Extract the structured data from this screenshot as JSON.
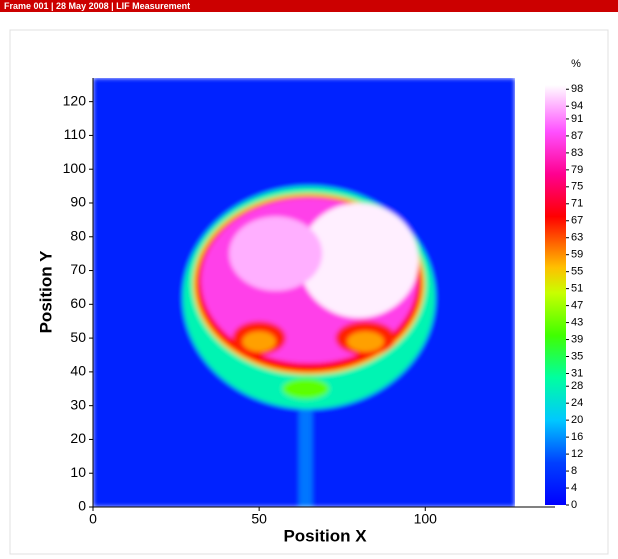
{
  "chart_data": {
    "type": "heatmap",
    "title": "Frame 001 | 28 May 2008 | LIF Measurement",
    "xlabel": "Position X",
    "ylabel": "Position Y",
    "xlim": [
      0,
      127
    ],
    "ylim": [
      0,
      127
    ],
    "xticks": [
      0,
      50,
      100
    ],
    "yticks": [
      0,
      10,
      20,
      30,
      40,
      50,
      60,
      70,
      80,
      90,
      100,
      110,
      120
    ],
    "colorbar_label": "%",
    "colorbar_lim": [
      0,
      99
    ],
    "colorbar_ticks": [
      98,
      94,
      91,
      87,
      83,
      79,
      75,
      71,
      67,
      63,
      59,
      55,
      51,
      47,
      43,
      39,
      35,
      31,
      28,
      24,
      20,
      16,
      12,
      8,
      4,
      0
    ],
    "colormap": [
      {
        "value": 0,
        "color": "#0000ff"
      },
      {
        "value": 10,
        "color": "#0040ff"
      },
      {
        "value": 20,
        "color": "#00c8ff"
      },
      {
        "value": 30,
        "color": "#00ffa0"
      },
      {
        "value": 40,
        "color": "#40ff00"
      },
      {
        "value": 50,
        "color": "#c8ff00"
      },
      {
        "value": 56,
        "color": "#ffc000"
      },
      {
        "value": 62,
        "color": "#ff6000"
      },
      {
        "value": 68,
        "color": "#ff0000"
      },
      {
        "value": 78,
        "color": "#ff0090"
      },
      {
        "value": 88,
        "color": "#ff50ff"
      },
      {
        "value": 99,
        "color": "#ffffff"
      }
    ],
    "regions": [
      {
        "shape": "rect",
        "x0": 0,
        "x1": 127,
        "y0": 0,
        "y1": 127,
        "value": 5
      },
      {
        "shape": "rect",
        "x0": 62,
        "x1": 66,
        "y0": 0,
        "y1": 36,
        "value": 14
      },
      {
        "shape": "ellipse",
        "cx": 65,
        "cy": 62,
        "rx": 38,
        "ry": 33,
        "value": 28
      },
      {
        "shape": "ellipse",
        "cx": 64,
        "cy": 35,
        "rx": 7,
        "ry": 3,
        "value": 42
      },
      {
        "shape": "ellipse",
        "cx": 65,
        "cy": 66,
        "rx": 35,
        "ry": 27,
        "value": 55
      },
      {
        "shape": "ellipse",
        "cx": 65,
        "cy": 66,
        "rx": 34,
        "ry": 26,
        "value": 68
      },
      {
        "shape": "ellipse",
        "cx": 65,
        "cy": 67,
        "rx": 32.5,
        "ry": 24.5,
        "value": 86
      },
      {
        "shape": "ellipse",
        "cx": 80,
        "cy": 73,
        "rx": 18,
        "ry": 17,
        "value": 98
      },
      {
        "shape": "ellipse",
        "cx": 55,
        "cy": 75,
        "rx": 14,
        "ry": 11,
        "value": 94
      },
      {
        "shape": "ellipse",
        "cx": 50,
        "cy": 50,
        "rx": 8,
        "ry": 5,
        "value": 66
      },
      {
        "shape": "ellipse",
        "cx": 82,
        "cy": 50,
        "rx": 9,
        "ry": 5,
        "value": 66
      },
      {
        "shape": "ellipse",
        "cx": 50,
        "cy": 49,
        "rx": 5,
        "ry": 3,
        "value": 58
      },
      {
        "shape": "ellipse",
        "cx": 82,
        "cy": 49,
        "rx": 5.5,
        "ry": 3,
        "value": 58
      }
    ]
  }
}
